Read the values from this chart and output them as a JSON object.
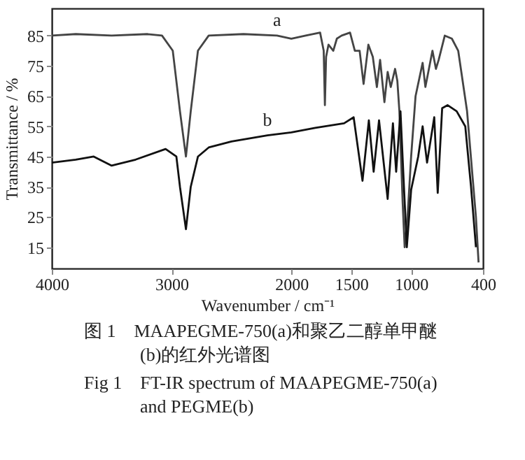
{
  "chart_data": {
    "type": "line",
    "xlabel": "Wavenumber / cm⁻¹",
    "ylabel": "Transmittance / %",
    "xlim": [
      4000,
      400
    ],
    "xticks": [
      4000,
      3000,
      2000,
      1500,
      1000,
      400
    ],
    "ylim": [
      8,
      94
    ],
    "yticks": [
      15,
      25,
      35,
      45,
      55,
      65,
      75,
      85
    ],
    "grid": false,
    "marker": "none",
    "line_style": "solid",
    "series": [
      {
        "name": "a",
        "color": "#444444",
        "x": [
          4000,
          3800,
          3500,
          3200,
          3080,
          2990,
          2930,
          2880,
          2840,
          2780,
          2690,
          2400,
          2120,
          2000,
          1880,
          1760,
          1730,
          1720,
          1710,
          1690,
          1650,
          1620,
          1580,
          1510,
          1470,
          1430,
          1397,
          1357,
          1320,
          1286,
          1259,
          1223,
          1196,
          1170,
          1134,
          1115,
          1098,
          1071,
          1054,
          1030,
          1000,
          963,
          904,
          881,
          822,
          793,
          770,
          719,
          660,
          607,
          533,
          459,
          437
        ],
        "values": [
          85,
          85.5,
          85,
          85.5,
          85,
          80,
          60,
          45,
          60,
          80,
          85,
          85.5,
          85,
          84,
          85,
          86,
          80,
          62,
          78,
          82,
          80,
          84,
          85,
          86,
          80,
          80,
          69,
          82,
          78,
          68,
          77,
          63,
          73,
          68,
          74,
          70,
          60,
          30,
          15,
          25,
          45,
          65,
          76,
          68,
          80,
          74,
          77,
          85,
          84,
          80,
          60,
          25,
          10
        ]
      },
      {
        "name": "b",
        "color": "#111111",
        "x": [
          4000,
          3800,
          3650,
          3500,
          3300,
          3050,
          2960,
          2930,
          2880,
          2840,
          2780,
          2690,
          2500,
          2200,
          2000,
          1800,
          1560,
          1480,
          1406,
          1353,
          1313,
          1268,
          1196,
          1152,
          1125,
          1089,
          1060,
          1036,
          1000,
          941,
          904,
          867,
          807,
          778,
          741,
          696,
          620,
          548,
          500,
          459
        ],
        "values": [
          43,
          44,
          45,
          42,
          44,
          47.5,
          45,
          35,
          21,
          35,
          45,
          48,
          50,
          52,
          53,
          54.5,
          56,
          58,
          37,
          57,
          40,
          57,
          31,
          56,
          40,
          60,
          35,
          15,
          34,
          45,
          55,
          43,
          58,
          33,
          61,
          62,
          60,
          55,
          35,
          15
        ]
      }
    ],
    "annotations": [
      "图 1　MAAPEGME-750(a)和聚乙二醇单甲醚(b)的红外光谱图",
      "Fig 1　FT-IR spectrum of MAAPEGME-750(a) and PEGME(b)"
    ]
  }
}
